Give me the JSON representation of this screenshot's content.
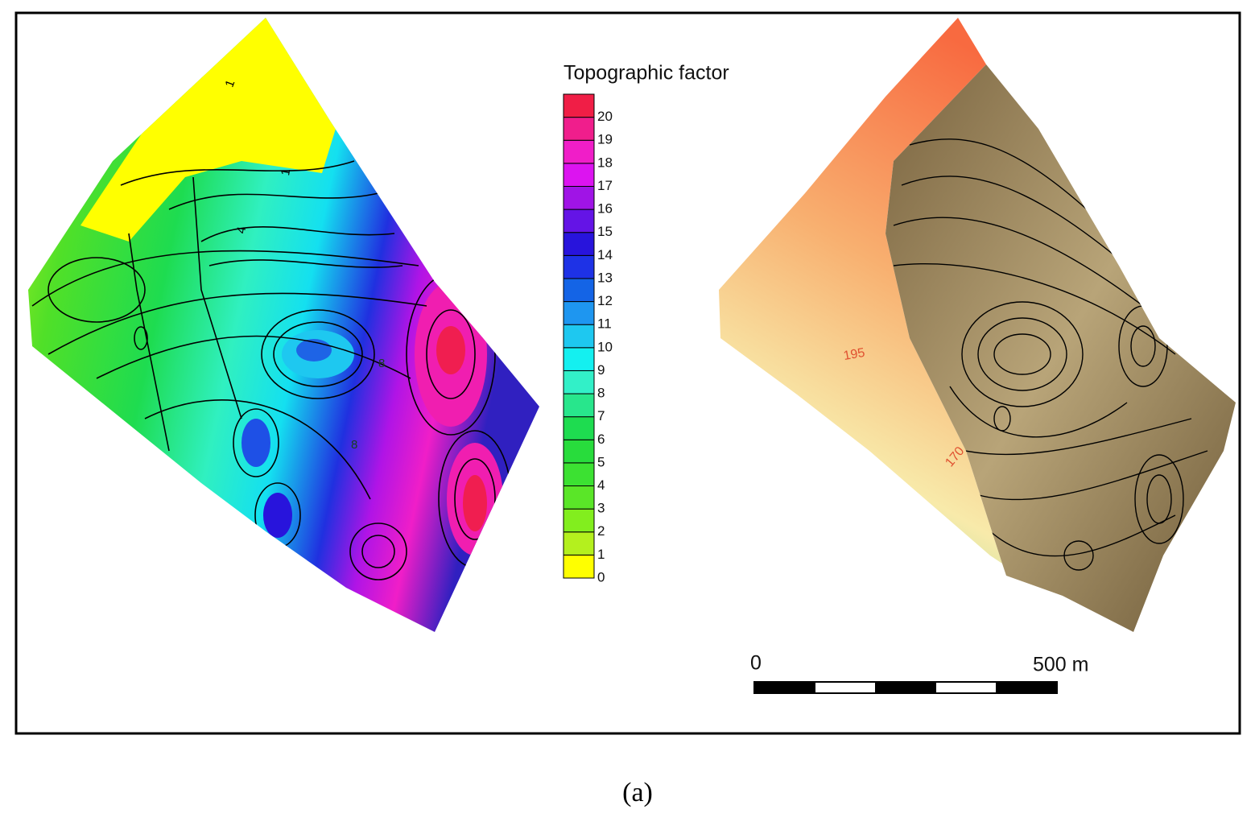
{
  "legend": {
    "title": "Topographic factor",
    "labels": [
      0,
      1,
      2,
      3,
      4,
      5,
      6,
      7,
      8,
      9,
      10,
      11,
      12,
      13,
      14,
      15,
      16,
      17,
      18,
      19,
      20
    ],
    "colors": [
      "#ffff00",
      "#b4f01e",
      "#82ee1e",
      "#5ae628",
      "#3ce132",
      "#28dc3c",
      "#1edc50",
      "#28e68c",
      "#32f0c8",
      "#14f0f0",
      "#1ec8f0",
      "#1e96f0",
      "#1464e6",
      "#1e32e6",
      "#2814dc",
      "#6414e6",
      "#a014e6",
      "#dc14f0",
      "#f01ec8",
      "#f01e8c",
      "#f01e46"
    ]
  },
  "left_map": {
    "contour_labels": [
      "1",
      "1",
      "4",
      "8",
      "8"
    ]
  },
  "right_map": {
    "contour_labels": [
      "195",
      "170"
    ]
  },
  "scale_bar": {
    "start": "0",
    "end": "500 m"
  },
  "caption": "(a)"
}
